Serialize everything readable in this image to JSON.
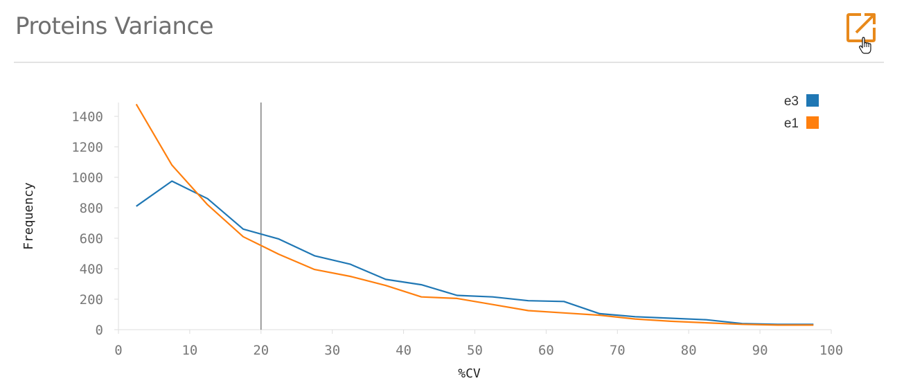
{
  "header": {
    "title": "Proteins Variance",
    "expand_icon": "external-link-icon",
    "accent_color": "#E8891B"
  },
  "chart_data": {
    "type": "line",
    "title": "",
    "xlabel": "%CV",
    "ylabel": "Frequency",
    "xlim": [
      0,
      100
    ],
    "ylim": [
      0,
      1500
    ],
    "x_ticks": [
      0,
      10,
      20,
      30,
      40,
      50,
      60,
      70,
      80,
      90,
      100
    ],
    "y_ticks": [
      0,
      200,
      400,
      600,
      800,
      1000,
      1200,
      1400
    ],
    "x": [
      2.5,
      7.5,
      12.5,
      17.5,
      22.5,
      27.5,
      32.5,
      37.5,
      42.5,
      47.5,
      52.5,
      57.5,
      62.5,
      67.5,
      72.5,
      77.5,
      82.5,
      87.5,
      92.5,
      97.5
    ],
    "series": [
      {
        "name": "e3",
        "color": "#1F77B4",
        "values": [
          810,
          975,
          860,
          660,
          595,
          485,
          430,
          330,
          295,
          225,
          215,
          190,
          185,
          105,
          85,
          75,
          65,
          40,
          35,
          35
        ]
      },
      {
        "name": "e1",
        "color": "#FF7F0E",
        "values": [
          1480,
          1080,
          820,
          610,
          495,
          395,
          350,
          290,
          215,
          205,
          165,
          125,
          110,
          95,
          70,
          55,
          45,
          35,
          30,
          30
        ]
      }
    ],
    "reference_line_x": 20,
    "grid": false,
    "legend_position": "top-right"
  }
}
